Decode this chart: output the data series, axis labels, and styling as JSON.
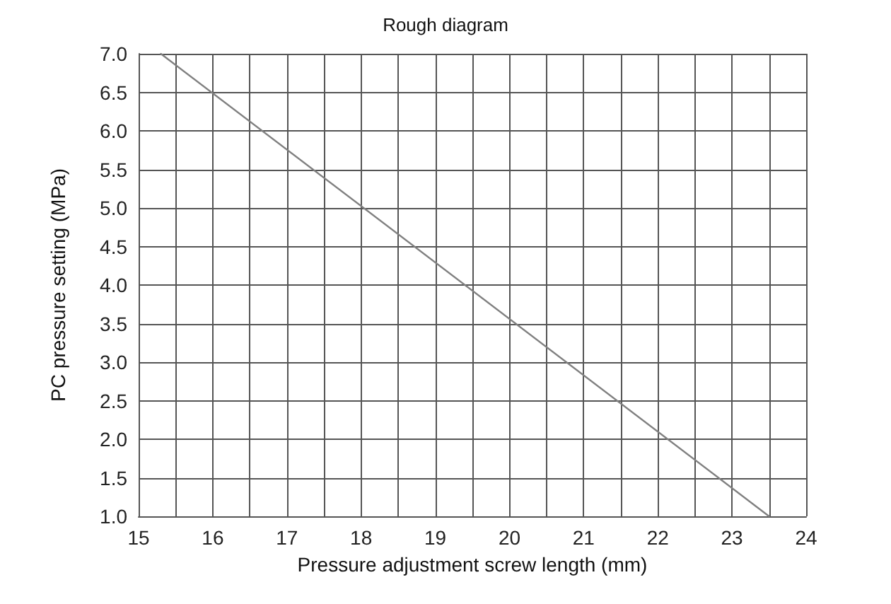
{
  "chart_data": {
    "type": "line",
    "title": "Rough diagram",
    "xlabel": "Pressure adjustment screw length (mm)",
    "ylabel": "PC pressure setting (MPa)",
    "x": [
      15.3,
      23.5
    ],
    "series": [
      {
        "color": "#808080",
        "values": [
          7.0,
          1.0
        ]
      }
    ],
    "xlim": [
      15,
      24
    ],
    "xticks": [
      15,
      {
        "value": 15.5,
        "label": null
      },
      16,
      {
        "value": 16.5,
        "label": null
      },
      17,
      {
        "value": 17.5,
        "label": null
      },
      18,
      {
        "value": 18.5,
        "label": null
      },
      19,
      {
        "value": 19.5,
        "label": null
      },
      20,
      {
        "value": 20.5,
        "label": null
      },
      21,
      {
        "value": 21.5,
        "label": null
      },
      22,
      {
        "value": 22.5,
        "label": null
      },
      23,
      {
        "value": 23.5,
        "label": null
      },
      24
    ],
    "ylim": [
      1,
      7
    ],
    "yticks": [
      {
        "value": 1,
        "label": "1.0"
      },
      {
        "value": 1.5,
        "label": "1.5"
      },
      {
        "value": 2,
        "label": "2.0"
      },
      {
        "value": 2.5,
        "label": "2.5"
      },
      {
        "value": 3,
        "label": "3.0"
      },
      {
        "value": 3.5,
        "label": "3.5"
      },
      {
        "value": 4,
        "label": "4.0"
      },
      {
        "value": 4.5,
        "label": "4.5"
      },
      {
        "value": 5,
        "label": "5.0"
      },
      {
        "value": 5.5,
        "label": "5.5"
      },
      {
        "value": 6,
        "label": "6.0"
      },
      {
        "value": 6.5,
        "label": "6.5"
      },
      {
        "value": 7,
        "label": "7.0"
      }
    ],
    "grid": true,
    "marker": "none",
    "line_style": "solid"
  }
}
